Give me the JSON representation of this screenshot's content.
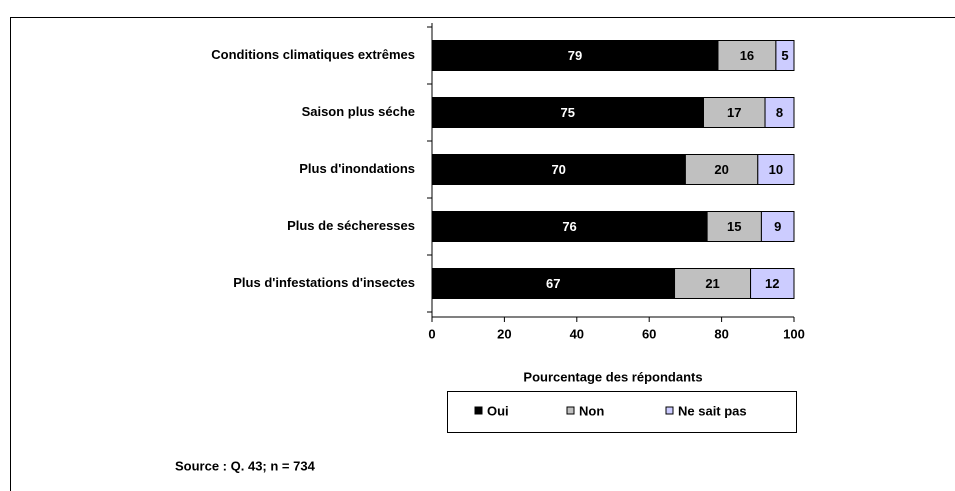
{
  "chart_data": {
    "type": "stacked-bar-horizontal",
    "categories": [
      "Conditions climatiques extrêmes",
      "Saison plus séche",
      "Plus d'inondations",
      "Plus de sécheresses",
      "Plus d'infestations d'insectes"
    ],
    "series": [
      {
        "name": "Oui",
        "color": "#000000",
        "values": [
          79,
          75,
          70,
          76,
          67
        ]
      },
      {
        "name": "Non",
        "color": "#c0c0c0",
        "values": [
          16,
          17,
          20,
          15,
          21
        ]
      },
      {
        "name": "Ne sait pas",
        "color": "#ccccff",
        "values": [
          5,
          8,
          10,
          9,
          12
        ]
      }
    ],
    "xlim": [
      0,
      100
    ],
    "xticks": [
      0,
      20,
      40,
      60,
      80,
      100
    ],
    "xlabel": "Pourcentage des répondants",
    "source": "Source : Q. 43; n = 734"
  }
}
